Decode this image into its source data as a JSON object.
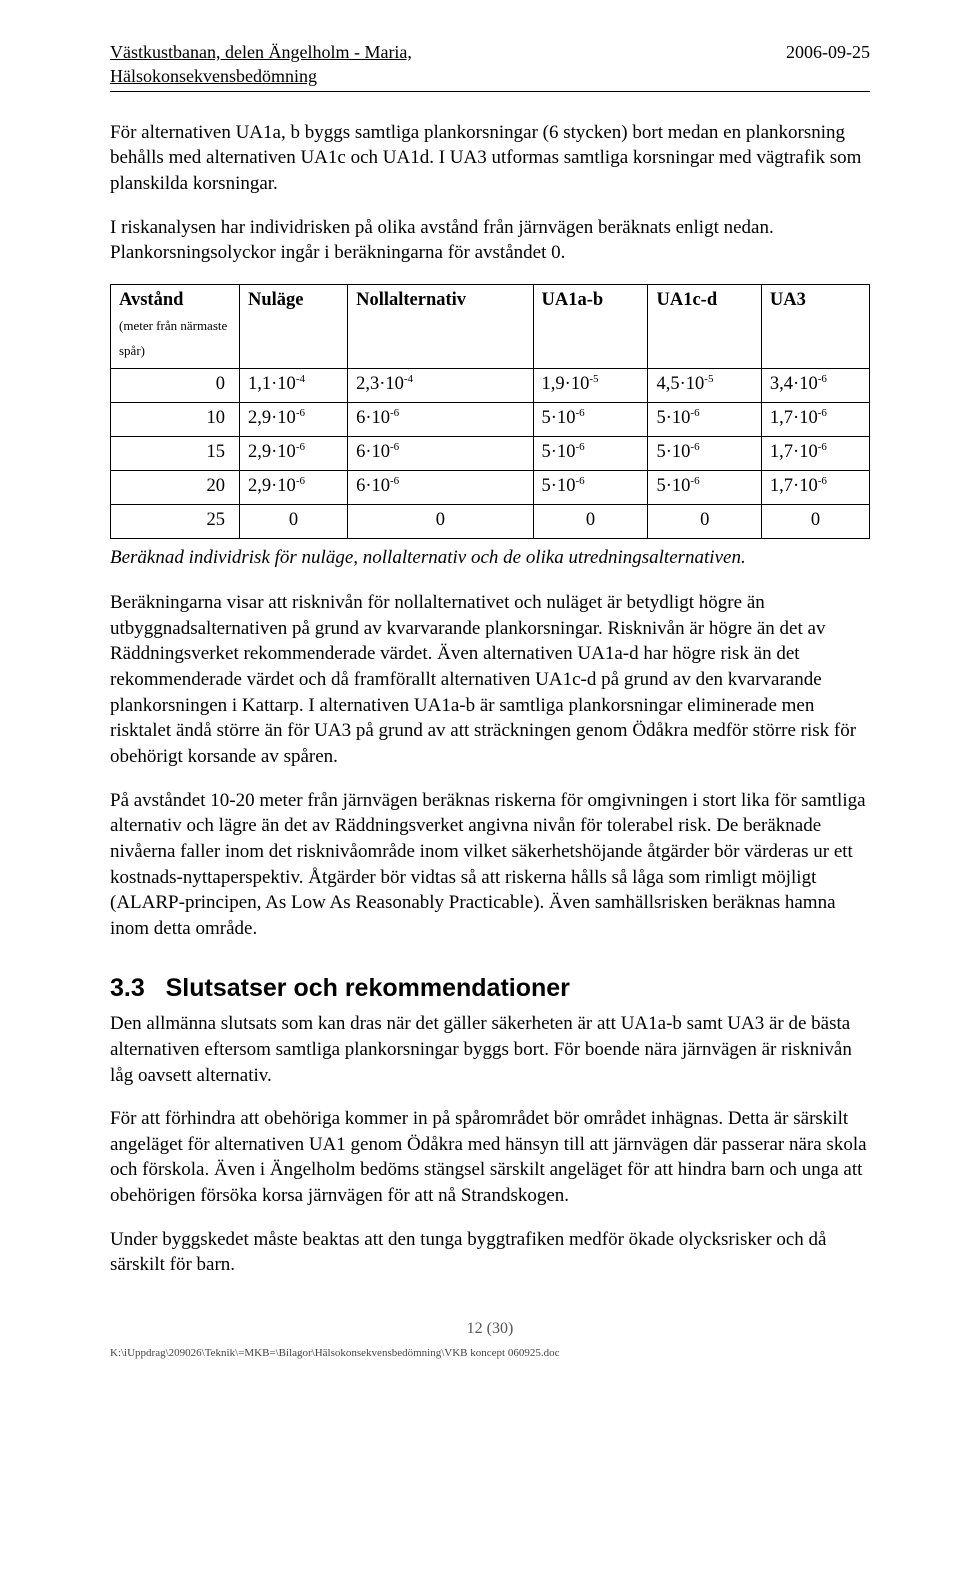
{
  "header": {
    "title_line1": "Västkustbanan, delen Ängelholm - Maria,",
    "title_line2": "Hälsokonsekvensbedömning",
    "date": "2006-09-25"
  },
  "para1": "För alternativen UA1a, b byggs samtliga plankorsningar (6 stycken) bort medan en plankorsning behålls med alternativen UA1c och UA1d. I UA3 utformas samtliga korsningar med vägtrafik som planskilda korsningar.",
  "para2": "I riskanalysen har individrisken på olika avstånd från järnvägen beräknats enligt nedan. Plankorsningsolyckor ingår i beräkningarna för avståndet 0.",
  "table": {
    "colheaders": {
      "c0_main": "Avstånd",
      "c0_sub": "(meter från närmaste spår)",
      "c1": "Nuläge",
      "c2": "Nollalternativ",
      "c3": "UA1a-b",
      "c4": "UA1c-d",
      "c5": "UA3"
    },
    "rows": [
      {
        "avstand": "0",
        "v": [
          [
            "1,1",
            "-4"
          ],
          [
            "2,3",
            "-4"
          ],
          [
            "1,9",
            "-5"
          ],
          [
            "4,5",
            "-5"
          ],
          [
            "3,4",
            "-6"
          ]
        ]
      },
      {
        "avstand": "10",
        "v": [
          [
            "2,9",
            "-6"
          ],
          [
            "6",
            "-6"
          ],
          [
            "5",
            "-6"
          ],
          [
            "5",
            "-6"
          ],
          [
            "1,7",
            "-6"
          ]
        ]
      },
      {
        "avstand": "15",
        "v": [
          [
            "2,9",
            "-6"
          ],
          [
            "6",
            "-6"
          ],
          [
            "5",
            "-6"
          ],
          [
            "5",
            "-6"
          ],
          [
            "1,7",
            "-6"
          ]
        ]
      },
      {
        "avstand": "20",
        "v": [
          [
            "2,9",
            "-6"
          ],
          [
            "6",
            "-6"
          ],
          [
            "5",
            "-6"
          ],
          [
            "5",
            "-6"
          ],
          [
            "1,7",
            "-6"
          ]
        ]
      }
    ],
    "zero_row": {
      "avstand": "25",
      "vals": [
        "0",
        "0",
        "0",
        "0",
        "0"
      ]
    }
  },
  "table_caption": "Beräknad individrisk för nuläge, nollalternativ och de olika utredningsalternativen.",
  "para3": "Beräkningarna visar att risknivån för nollalternativet och nuläget är betydligt högre än utbyggnadsalternativen på grund av kvarvarande plankorsningar. Risknivån är högre än det av Räddningsverket rekommenderade värdet. Även alternativen UA1a-d har högre risk än det rekommenderade värdet och då framförallt alternativen UA1c-d på grund av den kvarvarande plankorsningen i Kattarp. I alternativen UA1a-b är samtliga plankorsningar eliminerade men risktalet ändå större än för UA3 på grund av att sträckningen genom Ödåkra medför större risk för obehörigt korsande av spåren.",
  "para4": "På avståndet 10-20 meter från järnvägen beräknas riskerna för omgivningen i stort lika för samtliga alternativ och lägre än det av Räddningsverket angivna nivån för tolerabel risk. De beräknade nivåerna faller inom det risknivåområde inom vilket säkerhetshöjande åtgärder bör värderas ur ett kostnads-nyttaperspektiv. Åtgärder bör vidtas så att riskerna hålls så låga som rimligt möjligt (ALARP-principen, As Low As Reasonably Practicable). Även samhällsrisken beräknas hamna inom detta område.",
  "section": {
    "number": "3.3",
    "title": "Slutsatser och rekommendationer"
  },
  "para5": "Den allmänna slutsats som kan dras när det gäller säkerheten är att UA1a-b samt UA3 är de bästa alternativen eftersom samtliga plankorsningar byggs bort. För boende nära järnvägen är risknivån låg oavsett alternativ.",
  "para6": "För att förhindra att obehöriga kommer in på spårområdet bör området inhägnas. Detta är särskilt angeläget för alternativen UA1 genom Ödåkra med hänsyn till att järnvägen där passerar nära skola och förskola. Även i Ängelholm bedöms stängsel särskilt angeläget för att hindra barn och unga att obehörigen försöka korsa järnvägen för att nå Strandskogen.",
  "para7": "Under byggskedet måste beaktas att den tunga byggtrafiken medför ökade olycksrisker och då särskilt för barn.",
  "pagenum": "12 (30)",
  "footer": "K:\\iUppdrag\\209026\\Teknik\\=MKB=\\Bilagor\\Hälsokonsekvensbedömning\\VKB koncept 060925.doc"
}
